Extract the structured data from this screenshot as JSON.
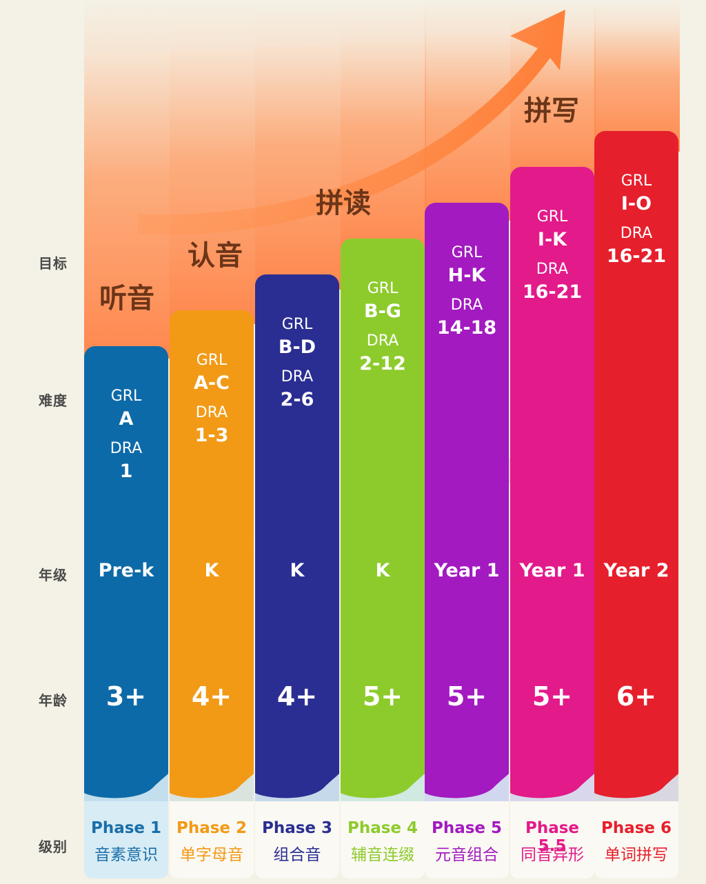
{
  "row_labels": {
    "goal": "目标",
    "difficulty": "难度",
    "grade": "年级",
    "age": "年龄",
    "level": "级别"
  },
  "goals": {
    "listening": "听音",
    "recognition": "认音",
    "blending": "拼读",
    "spelling": "拼写"
  },
  "phases": [
    {
      "grl_label": "GRL",
      "grl": "A",
      "dra_label": "DRA",
      "dra": "1",
      "grade": "Pre-k",
      "age": "3+",
      "name": "Phase 1",
      "desc": "音素意识",
      "color": "#0d6aa8",
      "text_color": "#1a6ea8"
    },
    {
      "grl_label": "GRL",
      "grl": "A-C",
      "dra_label": "DRA",
      "dra": "1-3",
      "grade": "K",
      "age": "4+",
      "name": "Phase 2",
      "desc": "单字母音",
      "color": "#f29a16",
      "text_color": "#f29a16"
    },
    {
      "grl_label": "GRL",
      "grl": "B-D",
      "dra_label": "DRA",
      "dra": "2-6",
      "grade": "K",
      "age": "4+",
      "name": "Phase 3",
      "desc": "组合音",
      "color": "#2a2e92",
      "text_color": "#2a2e92"
    },
    {
      "grl_label": "GRL",
      "grl": "B-G",
      "dra_label": "DRA",
      "dra": "2-12",
      "grade": "K",
      "age": "5+",
      "name": "Phase 4",
      "desc": "辅音连缀",
      "color": "#8dcb2c",
      "text_color": "#8dcb2c"
    },
    {
      "grl_label": "GRL",
      "grl": "H-K",
      "dra_label": "DRA",
      "dra": "14-18",
      "grade": "Year 1",
      "age": "5+",
      "name": "Phase 5",
      "desc": "元音组合",
      "color": "#a21ac0",
      "text_color": "#a21ac0"
    },
    {
      "grl_label": "GRL",
      "grl": "I-K",
      "dra_label": "DRA",
      "dra": "16-21",
      "grade": "Year 1",
      "age": "5+",
      "name": "Phase 5.5",
      "desc": "同音异形",
      "color": "#e31a8a",
      "text_color": "#e31a8a"
    },
    {
      "grl_label": "GRL",
      "grl": "I-O",
      "dra_label": "DRA",
      "dra": "16-21",
      "grade": "Year 2",
      "age": "6+",
      "name": "Phase 6",
      "desc": "单词拼写",
      "color": "#e61f2c",
      "text_color": "#e61f2c"
    }
  ]
}
